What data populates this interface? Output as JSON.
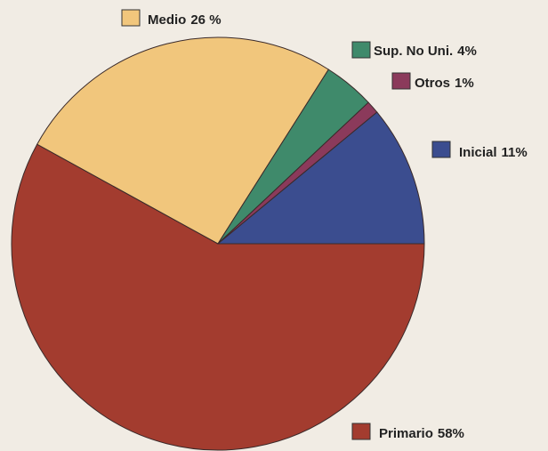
{
  "chart_data": {
    "type": "pie",
    "categories": [
      "Primario",
      "Medio",
      "Sup. No Uni.",
      "Otros",
      "Inicial"
    ],
    "values": [
      58,
      26,
      4,
      1,
      11
    ],
    "value_labels": [
      "58%",
      "26 %",
      "4%",
      "1%",
      "11%"
    ],
    "colors": [
      "#a33c2f",
      "#f1c67c",
      "#3f8a6b",
      "#8b3a5b",
      "#3b4d8f"
    ]
  }
}
